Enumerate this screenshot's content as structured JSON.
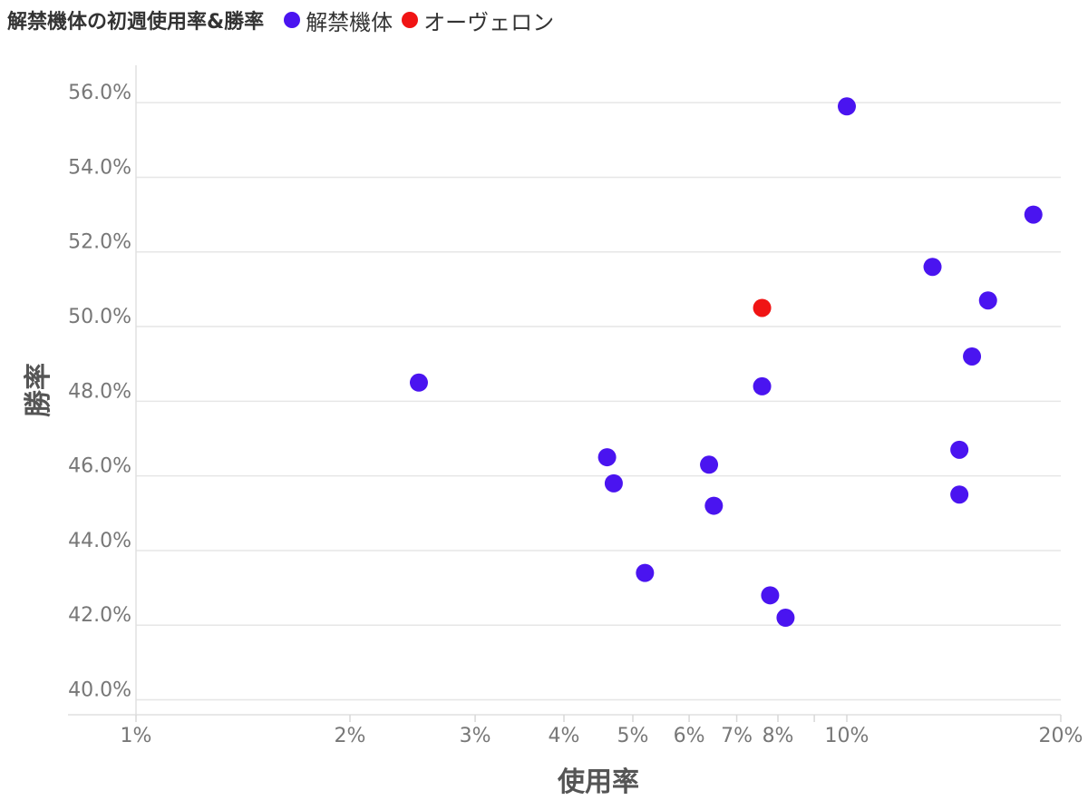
{
  "chart_data": {
    "type": "scatter",
    "title": "解禁機体の初週使用率&勝率",
    "xlabel": "使用率",
    "ylabel": "勝率",
    "x_scale": "log",
    "xlim": [
      1,
      20
    ],
    "ylim": [
      39.6,
      57.0
    ],
    "x_ticks": [
      {
        "value": 1,
        "label": "1%"
      },
      {
        "value": 2,
        "label": "2%"
      },
      {
        "value": 3,
        "label": "3%"
      },
      {
        "value": 4,
        "label": "4%"
      },
      {
        "value": 5,
        "label": "5%"
      },
      {
        "value": 6,
        "label": "6%"
      },
      {
        "value": 7,
        "label": "7%"
      },
      {
        "value": 8,
        "label": "8%"
      },
      {
        "value": 10,
        "label": "10%"
      },
      {
        "value": 20,
        "label": "20%"
      }
    ],
    "x_minor_ticks": [
      9
    ],
    "y_ticks": [
      {
        "value": 40,
        "label": "40.0%"
      },
      {
        "value": 42,
        "label": "42.0%"
      },
      {
        "value": 44,
        "label": "44.0%"
      },
      {
        "value": 46,
        "label": "46.0%"
      },
      {
        "value": 48,
        "label": "48.0%"
      },
      {
        "value": 50,
        "label": "50.0%"
      },
      {
        "value": 52,
        "label": "52.0%"
      },
      {
        "value": 54,
        "label": "54.0%"
      },
      {
        "value": 56,
        "label": "56.0%"
      }
    ],
    "grid": {
      "y": true,
      "x": false
    },
    "legend_position": "top",
    "series": [
      {
        "name": "解禁機体",
        "color": "#4a14f0",
        "points": [
          {
            "x": 2.5,
            "y": 48.5
          },
          {
            "x": 4.6,
            "y": 46.5
          },
          {
            "x": 4.7,
            "y": 45.8
          },
          {
            "x": 5.2,
            "y": 43.4
          },
          {
            "x": 6.4,
            "y": 46.3
          },
          {
            "x": 6.5,
            "y": 45.2
          },
          {
            "x": 7.6,
            "y": 48.4
          },
          {
            "x": 7.8,
            "y": 42.8
          },
          {
            "x": 8.2,
            "y": 42.2
          },
          {
            "x": 10.0,
            "y": 55.9
          },
          {
            "x": 13.2,
            "y": 51.6
          },
          {
            "x": 14.4,
            "y": 46.7
          },
          {
            "x": 14.4,
            "y": 45.5
          },
          {
            "x": 15.0,
            "y": 49.2
          },
          {
            "x": 15.8,
            "y": 50.7
          },
          {
            "x": 18.3,
            "y": 53.0
          }
        ]
      },
      {
        "name": "オーヴェロン",
        "color": "#f01414",
        "points": [
          {
            "x": 7.6,
            "y": 50.5
          }
        ]
      }
    ]
  }
}
